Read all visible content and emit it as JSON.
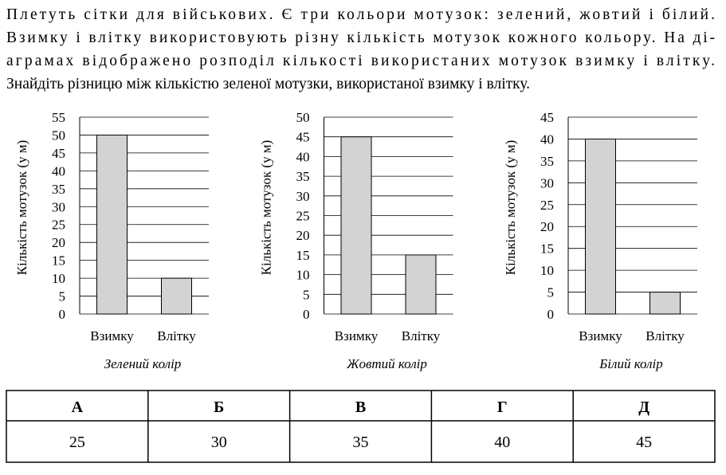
{
  "question": [
    "Плетуть сітки для військових. Є три кольори мотузок: зелений, жовтий і білий.",
    "Взимку і влітку використовують різну кількість мотузок кожного кольору. На ді-",
    "аграмах відображено розподіл кількості використаних мотузок взимку і влітку.",
    "Знайдіть різницю між кількістю зеленої мотузки, використаної взимку і влітку."
  ],
  "chart_data": [
    {
      "type": "bar",
      "categories": [
        "Взимку",
        "Влітку"
      ],
      "values": [
        50,
        10
      ],
      "color": "#d3d3d3",
      "ylabel": "Кількість мотузок (у м)",
      "xlabel": "Зелений колір",
      "ylim": [
        0,
        55
      ],
      "yticks": [
        0,
        5,
        10,
        15,
        20,
        25,
        30,
        35,
        40,
        45,
        50,
        55
      ],
      "grid": true
    },
    {
      "type": "bar",
      "categories": [
        "Взимку",
        "Влітку"
      ],
      "values": [
        45,
        15
      ],
      "color": "#d3d3d3",
      "ylabel": "Кількість мотузок (у м)",
      "xlabel": "Жовтий колір",
      "ylim": [
        0,
        50
      ],
      "yticks": [
        0,
        5,
        10,
        15,
        20,
        25,
        30,
        35,
        40,
        45,
        50
      ],
      "grid": true
    },
    {
      "type": "bar",
      "categories": [
        "Взимку",
        "Влітку"
      ],
      "values": [
        40,
        5
      ],
      "color": "#d3d3d3",
      "ylabel": "Кількість мотузок (у м)",
      "xlabel": "Білий колір",
      "ylim": [
        0,
        45
      ],
      "yticks": [
        0,
        5,
        10,
        15,
        20,
        25,
        30,
        35,
        40,
        45
      ],
      "grid": true
    }
  ],
  "table": {
    "header": [
      "А",
      "Б",
      "В",
      "Г",
      "Д"
    ],
    "rows": [
      [
        25,
        30,
        35,
        40,
        45
      ]
    ]
  }
}
